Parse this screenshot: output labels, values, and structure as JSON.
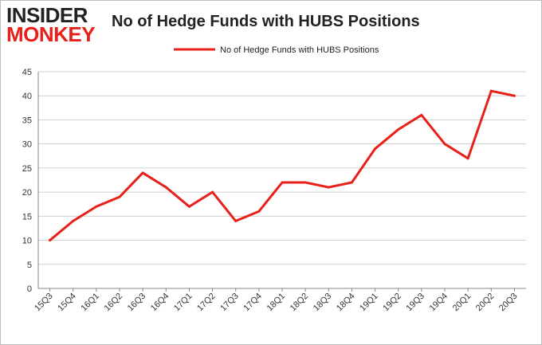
{
  "logo": {
    "line1": "INSIDER",
    "line2": "MONKEY"
  },
  "chart_data": {
    "type": "line",
    "title": "No of Hedge Funds with HUBS Positions",
    "xlabel": "",
    "ylabel": "",
    "categories": [
      "15Q3",
      "15Q4",
      "16Q1",
      "16Q2",
      "16Q3",
      "16Q4",
      "17Q1",
      "17Q2",
      "17Q3",
      "17Q4",
      "18Q1",
      "18Q2",
      "18Q3",
      "18Q4",
      "19Q1",
      "19Q2",
      "19Q3",
      "19Q4",
      "20Q1",
      "20Q2",
      "20Q3"
    ],
    "series": [
      {
        "name": "No of Hedge Funds with HUBS Positions",
        "values": [
          10,
          14,
          17,
          19,
          24,
          21,
          17,
          20,
          14,
          16,
          22,
          22,
          21,
          22,
          29,
          33,
          36,
          30,
          27,
          41,
          40
        ],
        "color": "#e8201a"
      }
    ],
    "ylim": [
      0,
      45
    ],
    "yticks": [
      0,
      5,
      10,
      15,
      20,
      25,
      30,
      35,
      40,
      45
    ],
    "grid": true,
    "legend": "top-center"
  }
}
